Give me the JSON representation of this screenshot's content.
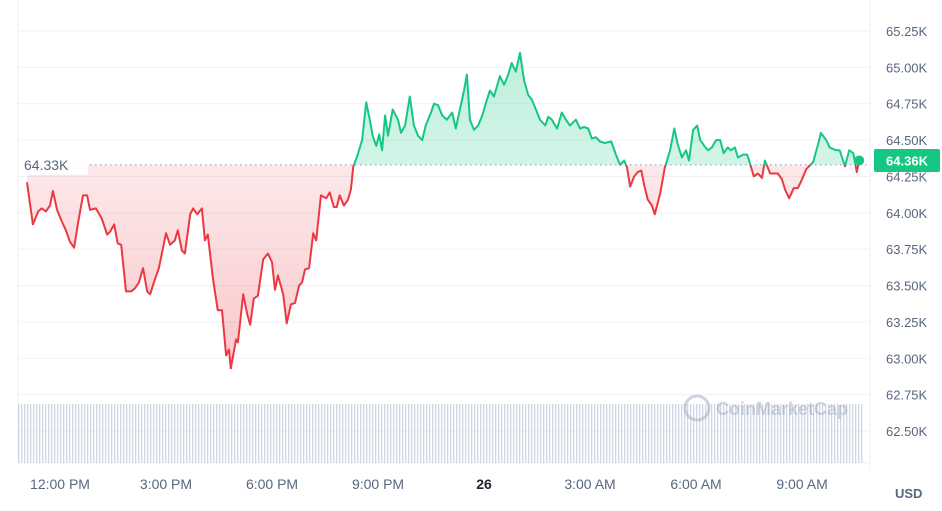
{
  "chart_data": {
    "type": "line",
    "title": "",
    "xlabel": "",
    "ylabel": "",
    "unit_label": "USD",
    "ylim": [
      62.3,
      65.4
    ],
    "y_ticks": [
      "65.25K",
      "65.00K",
      "64.75K",
      "64.50K",
      "64.25K",
      "64.00K",
      "63.75K",
      "63.50K",
      "63.25K",
      "63.00K",
      "62.75K",
      "62.50K"
    ],
    "y_tick_values": [
      65.25,
      65.0,
      64.75,
      64.5,
      64.25,
      64.0,
      63.75,
      63.5,
      63.25,
      63.0,
      62.75,
      62.5
    ],
    "x_ticks": [
      {
        "label": "12:00 PM",
        "time": "12:00",
        "bold": false
      },
      {
        "label": "3:00 PM",
        "time": "15:00",
        "bold": false
      },
      {
        "label": "6:00 PM",
        "time": "18:00",
        "bold": false
      },
      {
        "label": "9:00 PM",
        "time": "21:00",
        "bold": false
      },
      {
        "label": "26",
        "time": "00:00",
        "bold": true
      },
      {
        "label": "3:00 AM",
        "time": "03:00",
        "bold": false
      },
      {
        "label": "6:00 AM",
        "time": "06:00",
        "bold": false
      },
      {
        "label": "9:00 AM",
        "time": "09:00",
        "bold": false
      }
    ],
    "grid": true,
    "reference_line": {
      "value": 64.33,
      "label": "64.33K"
    },
    "current_price": {
      "value": 64.36,
      "label": "64.36K"
    },
    "colors": {
      "up": "#16c784",
      "down": "#ea3943",
      "volume": "#cfd6e4"
    },
    "watermark": "CoinMarketCap",
    "points": [
      [
        "11:04",
        64.21
      ],
      [
        "11:14",
        63.92
      ],
      [
        "11:23",
        64.01
      ],
      [
        "11:29",
        64.03
      ],
      [
        "11:36",
        64.01
      ],
      [
        "11:43",
        64.05
      ],
      [
        "11:48",
        64.15
      ],
      [
        "11:55",
        64.02
      ],
      [
        "12:03",
        63.94
      ],
      [
        "12:10",
        63.88
      ],
      [
        "12:17",
        63.8
      ],
      [
        "12:24",
        63.76
      ],
      [
        "12:31",
        63.94
      ],
      [
        "12:39",
        64.12
      ],
      [
        "12:46",
        64.12
      ],
      [
        "12:51",
        64.02
      ],
      [
        "13:01",
        64.03
      ],
      [
        "13:11",
        63.96
      ],
      [
        "13:20",
        63.85
      ],
      [
        "13:25",
        63.87
      ],
      [
        "13:32",
        63.92
      ],
      [
        "13:38",
        63.79
      ],
      [
        "13:44",
        63.78
      ],
      [
        "13:52",
        63.46
      ],
      [
        "14:01",
        63.46
      ],
      [
        "14:07",
        63.48
      ],
      [
        "14:14",
        63.52
      ],
      [
        "14:21",
        63.62
      ],
      [
        "14:28",
        63.46
      ],
      [
        "14:33",
        63.44
      ],
      [
        "14:41",
        63.54
      ],
      [
        "14:48",
        63.62
      ],
      [
        "15:00",
        63.86
      ],
      [
        "15:07",
        63.78
      ],
      [
        "15:15",
        63.81
      ],
      [
        "15:20",
        63.88
      ],
      [
        "15:27",
        63.74
      ],
      [
        "15:32",
        63.72
      ],
      [
        "15:41",
        63.99
      ],
      [
        "15:46",
        64.03
      ],
      [
        "15:53",
        63.99
      ],
      [
        "16:01",
        64.03
      ],
      [
        "16:06",
        63.81
      ],
      [
        "16:11",
        63.85
      ],
      [
        "16:20",
        63.54
      ],
      [
        "16:28",
        63.33
      ],
      [
        "16:35",
        63.33
      ],
      [
        "16:42",
        63.02
      ],
      [
        "16:47",
        63.06
      ],
      [
        "16:50",
        62.93
      ],
      [
        "16:59",
        63.13
      ],
      [
        "17:02",
        63.11
      ],
      [
        "17:11",
        63.44
      ],
      [
        "17:18",
        63.3
      ],
      [
        "17:23",
        63.23
      ],
      [
        "17:29",
        63.41
      ],
      [
        "17:36",
        63.43
      ],
      [
        "17:45",
        63.68
      ],
      [
        "17:53",
        63.72
      ],
      [
        "18:00",
        63.66
      ],
      [
        "18:05",
        63.47
      ],
      [
        "18:10",
        63.57
      ],
      [
        "18:19",
        63.44
      ],
      [
        "18:25",
        63.24
      ],
      [
        "18:32",
        63.37
      ],
      [
        "18:39",
        63.38
      ],
      [
        "18:46",
        63.5
      ],
      [
        "18:51",
        63.52
      ],
      [
        "18:56",
        63.61
      ],
      [
        "19:03",
        63.62
      ],
      [
        "19:10",
        63.86
      ],
      [
        "19:15",
        63.81
      ],
      [
        "19:23",
        64.12
      ],
      [
        "19:32",
        64.1
      ],
      [
        "19:38",
        64.14
      ],
      [
        "19:45",
        64.04
      ],
      [
        "19:50",
        64.04
      ],
      [
        "19:55",
        64.12
      ],
      [
        "20:02",
        64.05
      ],
      [
        "20:09",
        64.09
      ],
      [
        "20:14",
        64.16
      ],
      [
        "20:18",
        64.32
      ],
      [
        "20:24",
        64.38
      ],
      [
        "20:33",
        64.5
      ],
      [
        "20:40",
        64.76
      ],
      [
        "20:46",
        64.64
      ],
      [
        "20:51",
        64.53
      ],
      [
        "20:57",
        64.46
      ],
      [
        "21:02",
        64.54
      ],
      [
        "21:07",
        64.43
      ],
      [
        "21:12",
        64.67
      ],
      [
        "21:17",
        64.53
      ],
      [
        "21:25",
        64.71
      ],
      [
        "21:34",
        64.64
      ],
      [
        "21:39",
        64.55
      ],
      [
        "21:46",
        64.6
      ],
      [
        "21:54",
        64.8
      ],
      [
        "22:01",
        64.6
      ],
      [
        "22:08",
        64.53
      ],
      [
        "22:15",
        64.5
      ],
      [
        "22:21",
        64.6
      ],
      [
        "22:30",
        64.69
      ],
      [
        "22:35",
        64.75
      ],
      [
        "22:42",
        64.74
      ],
      [
        "22:49",
        64.67
      ],
      [
        "22:57",
        64.64
      ],
      [
        "23:06",
        64.69
      ],
      [
        "23:12",
        64.58
      ],
      [
        "23:19",
        64.71
      ],
      [
        "23:26",
        64.84
      ],
      [
        "23:31",
        64.95
      ],
      [
        "23:36",
        64.64
      ],
      [
        "23:43",
        64.57
      ],
      [
        "23:50",
        64.6
      ],
      [
        "23:57",
        64.67
      ],
      [
        "00:05",
        64.78
      ],
      [
        "00:10",
        64.84
      ],
      [
        "00:17",
        64.8
      ],
      [
        "00:27",
        64.94
      ],
      [
        "00:34",
        64.88
      ],
      [
        "00:41",
        64.95
      ],
      [
        "00:47",
        65.03
      ],
      [
        "00:54",
        64.97
      ],
      [
        "01:01",
        65.1
      ],
      [
        "01:08",
        64.91
      ],
      [
        "01:15",
        64.81
      ],
      [
        "01:21",
        64.78
      ],
      [
        "01:28",
        64.71
      ],
      [
        "01:35",
        64.64
      ],
      [
        "01:44",
        64.6
      ],
      [
        "01:49",
        64.66
      ],
      [
        "01:55",
        64.64
      ],
      [
        "02:04",
        64.58
      ],
      [
        "02:12",
        64.69
      ],
      [
        "02:19",
        64.64
      ],
      [
        "02:26",
        64.6
      ],
      [
        "02:36",
        64.64
      ],
      [
        "02:43",
        64.58
      ],
      [
        "02:50",
        64.59
      ],
      [
        "02:57",
        64.58
      ],
      [
        "03:03",
        64.51
      ],
      [
        "03:10",
        64.52
      ],
      [
        "03:17",
        64.49
      ],
      [
        "03:25",
        64.48
      ],
      [
        "03:36",
        64.49
      ],
      [
        "03:44",
        64.4
      ],
      [
        "03:51",
        64.33
      ],
      [
        "03:58",
        64.36
      ],
      [
        "04:03",
        64.31
      ],
      [
        "04:08",
        64.18
      ],
      [
        "04:15",
        64.25
      ],
      [
        "04:21",
        64.28
      ],
      [
        "04:27",
        64.29
      ],
      [
        "04:32",
        64.19
      ],
      [
        "04:38",
        64.09
      ],
      [
        "04:45",
        64.05
      ],
      [
        "04:50",
        63.99
      ],
      [
        "04:59",
        64.13
      ],
      [
        "05:07",
        64.31
      ],
      [
        "05:16",
        64.43
      ],
      [
        "05:23",
        64.58
      ],
      [
        "05:29",
        64.47
      ],
      [
        "05:36",
        64.38
      ],
      [
        "05:43",
        64.43
      ],
      [
        "05:48",
        64.36
      ],
      [
        "05:55",
        64.57
      ],
      [
        "06:02",
        64.6
      ],
      [
        "06:07",
        64.5
      ],
      [
        "06:14",
        64.46
      ],
      [
        "06:20",
        64.43
      ],
      [
        "06:27",
        64.45
      ],
      [
        "06:34",
        64.5
      ],
      [
        "06:41",
        64.5
      ],
      [
        "06:47",
        64.41
      ],
      [
        "06:54",
        64.45
      ],
      [
        "06:59",
        64.43
      ],
      [
        "07:06",
        64.45
      ],
      [
        "07:11",
        64.38
      ],
      [
        "07:20",
        64.4
      ],
      [
        "07:27",
        64.4
      ],
      [
        "07:33",
        64.32
      ],
      [
        "07:38",
        64.25
      ],
      [
        "07:45",
        64.27
      ],
      [
        "07:52",
        64.24
      ],
      [
        "07:57",
        64.36
      ],
      [
        "08:06",
        64.27
      ],
      [
        "08:14",
        64.27
      ],
      [
        "08:19",
        64.27
      ],
      [
        "08:26",
        64.23
      ],
      [
        "08:31",
        64.16
      ],
      [
        "08:38",
        64.1
      ],
      [
        "08:46",
        64.17
      ],
      [
        "08:53",
        64.17
      ],
      [
        "09:00",
        64.23
      ],
      [
        "09:07",
        64.3
      ],
      [
        "09:19",
        64.35
      ],
      [
        "09:27",
        64.47
      ],
      [
        "09:32",
        64.55
      ],
      [
        "09:41",
        64.5
      ],
      [
        "09:47",
        64.45
      ],
      [
        "09:58",
        64.43
      ],
      [
        "10:04",
        64.43
      ],
      [
        "10:13",
        64.32
      ],
      [
        "10:20",
        64.43
      ],
      [
        "10:27",
        64.41
      ],
      [
        "10:33",
        64.28
      ],
      [
        "10:37",
        64.36
      ]
    ]
  }
}
